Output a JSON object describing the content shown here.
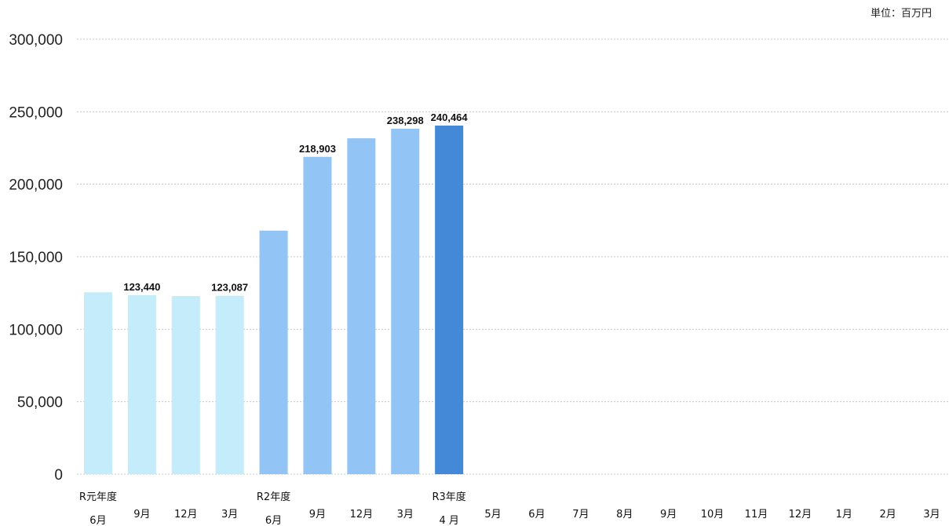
{
  "chart_data": {
    "type": "bar",
    "unit_label": "単位：百万円",
    "ylim": [
      0,
      300000
    ],
    "yticks": [
      "0",
      "50,000",
      "100,000",
      "150,000",
      "200,000",
      "250,000",
      "300,000"
    ],
    "grid": true,
    "categories": [
      {
        "lines": [
          "R元年度",
          "6月"
        ]
      },
      {
        "lines": [
          "9月"
        ]
      },
      {
        "lines": [
          "12月"
        ]
      },
      {
        "lines": [
          "3月"
        ]
      },
      {
        "lines": [
          "R2年度",
          "6月"
        ]
      },
      {
        "lines": [
          "9月"
        ]
      },
      {
        "lines": [
          "12月"
        ]
      },
      {
        "lines": [
          "3月"
        ]
      },
      {
        "lines": [
          "R3年度",
          "4 月"
        ]
      },
      {
        "lines": [
          "5月"
        ]
      },
      {
        "lines": [
          "6月"
        ]
      },
      {
        "lines": [
          "7月"
        ]
      },
      {
        "lines": [
          "8月"
        ]
      },
      {
        "lines": [
          "9月"
        ]
      },
      {
        "lines": [
          "10月"
        ]
      },
      {
        "lines": [
          "11月"
        ]
      },
      {
        "lines": [
          "12月"
        ]
      },
      {
        "lines": [
          "1月"
        ]
      },
      {
        "lines": [
          "2月"
        ]
      },
      {
        "lines": [
          "3月"
        ]
      }
    ],
    "values": [
      125500,
      123440,
      122900,
      123087,
      168000,
      218903,
      231700,
      238298,
      240464,
      null,
      null,
      null,
      null,
      null,
      null,
      null,
      null,
      null,
      null,
      null
    ],
    "data_labels": [
      "",
      "123,440",
      "",
      "123,087",
      "",
      "218,903",
      "",
      "238,298",
      "240,464",
      "",
      "",
      "",
      "",
      "",
      "",
      "",
      "",
      "",
      "",
      ""
    ],
    "colors": [
      "#c5ecfa",
      "#c5ecfa",
      "#c5ecfa",
      "#c5ecfa",
      "#92c5f5",
      "#92c5f5",
      "#92c5f5",
      "#92c5f5",
      "#4489d8",
      "",
      "",
      "",
      "",
      "",
      "",
      "",
      "",
      "",
      "",
      ""
    ],
    "gridline_color": "#c8c8c8"
  }
}
